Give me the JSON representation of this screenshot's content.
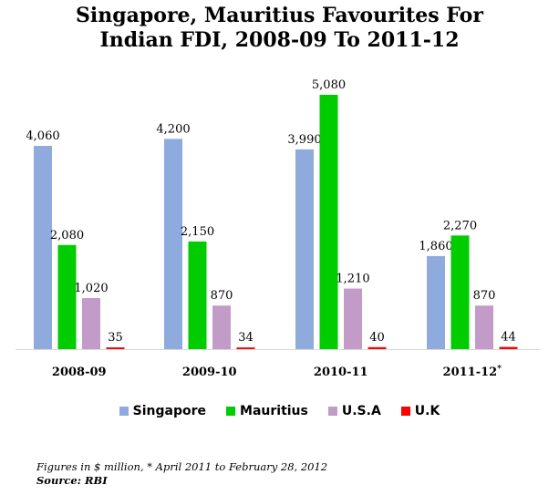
{
  "chart_data": {
    "type": "bar",
    "title_lines": [
      "Singapore, Mauritius Favourites For",
      "Indian FDI, 2008-09 To 2011-12"
    ],
    "categories": [
      "2008-09",
      "2009-10",
      "2010-11",
      "2011-12"
    ],
    "category_marks": [
      "",
      "",
      "",
      "*"
    ],
    "series": [
      {
        "name": "Singapore",
        "color": "#8FAADC",
        "values": [
          4060,
          4200,
          3990,
          1860
        ],
        "labels": [
          "4,060",
          "4,200",
          "3,990",
          "1,860"
        ]
      },
      {
        "name": "Mauritius",
        "color": "#00CC00",
        "values": [
          2080,
          2150,
          5080,
          2270
        ],
        "labels": [
          "2,080",
          "2,150",
          "5,080",
          "2,270"
        ]
      },
      {
        "name": "U.S.A",
        "color": "#C39BC8",
        "values": [
          1020,
          870,
          1210,
          870
        ],
        "labels": [
          "1,020",
          "870",
          "1,210",
          "870"
        ]
      },
      {
        "name": "U.K",
        "color": "#FF0000",
        "values": [
          35,
          34,
          40,
          44
        ],
        "labels": [
          "35",
          "34",
          "40",
          "44"
        ]
      }
    ],
    "ylim": [
      0,
      5080
    ],
    "grid": false,
    "legend_position": "bottom"
  },
  "footnote": {
    "note": "Figures in $ million, * April 2011 to February 28, 2012",
    "source": "Source: RBI"
  }
}
